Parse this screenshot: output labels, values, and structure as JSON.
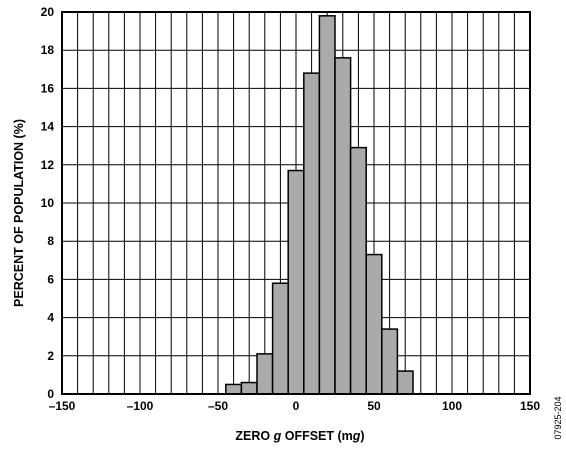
{
  "chart_data": {
    "type": "bar",
    "title": "",
    "xlabel_parts": [
      "ZERO ",
      "g",
      " OFFSET (m",
      "g",
      ")"
    ],
    "ylabel": "PERCENT OF POPULATION (%)",
    "figure_id": "07925-204",
    "xlim": [
      -150,
      150
    ],
    "ylim": [
      0,
      20
    ],
    "x_ticks": [
      -150,
      -100,
      -50,
      0,
      50,
      100,
      150
    ],
    "x_tick_labels": [
      "–150",
      "–100",
      "–50",
      "0",
      "50",
      "100",
      "150"
    ],
    "y_ticks": [
      0,
      2,
      4,
      6,
      8,
      10,
      12,
      14,
      16,
      18,
      20
    ],
    "y_tick_labels": [
      "0",
      "2",
      "4",
      "6",
      "8",
      "10",
      "12",
      "14",
      "16",
      "18",
      "20"
    ],
    "grid": true,
    "grid_x_step": 10,
    "bar_color": "#aaaaaa",
    "bin_width": 10,
    "bins": [
      {
        "x_start": -45,
        "value": 0.5
      },
      {
        "x_start": -35,
        "value": 0.6
      },
      {
        "x_start": -25,
        "value": 2.1
      },
      {
        "x_start": -15,
        "value": 5.8
      },
      {
        "x_start": -5,
        "value": 11.7
      },
      {
        "x_start": 5,
        "value": 16.8
      },
      {
        "x_start": 15,
        "value": 19.8
      },
      {
        "x_start": 25,
        "value": 17.6
      },
      {
        "x_start": 35,
        "value": 12.9
      },
      {
        "x_start": 45,
        "value": 7.3
      },
      {
        "x_start": 55,
        "value": 3.4
      },
      {
        "x_start": 65,
        "value": 1.2
      }
    ]
  }
}
